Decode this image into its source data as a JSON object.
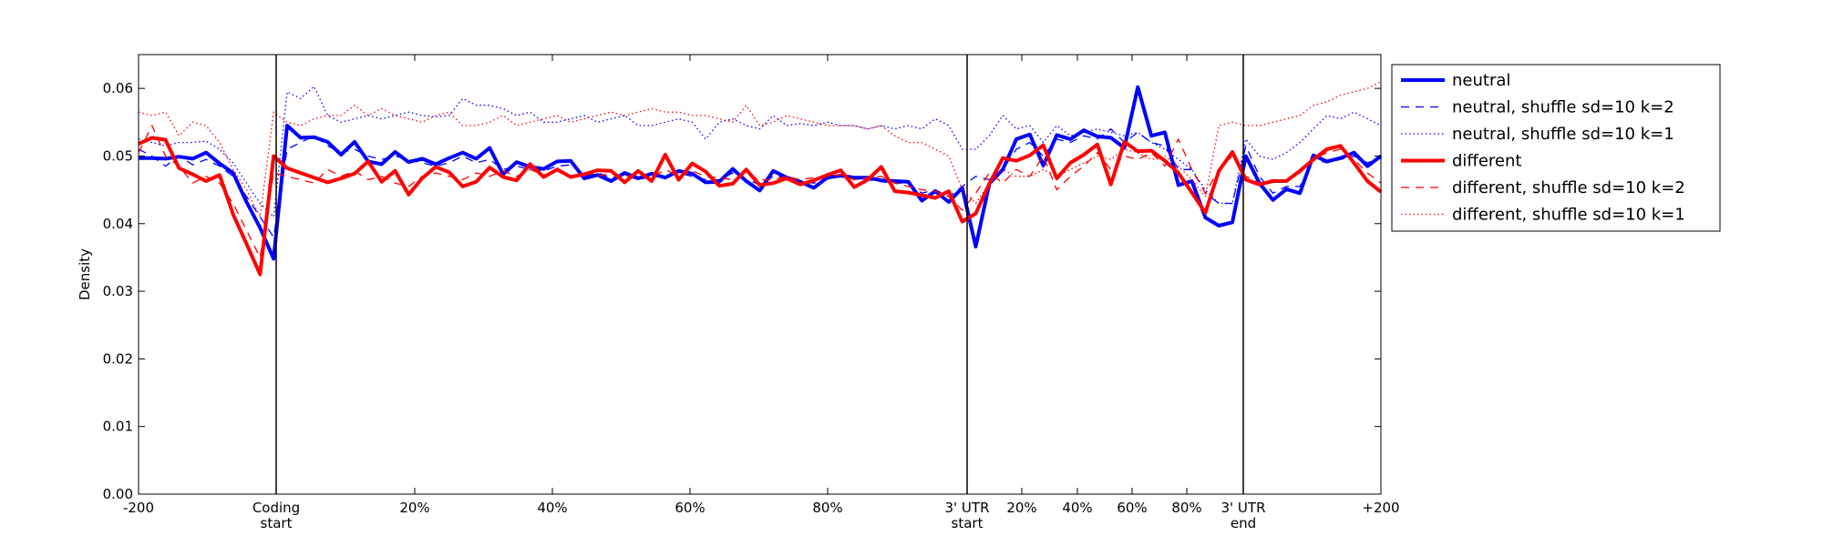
{
  "chart_data": {
    "type": "line",
    "title": "",
    "xlabel": "",
    "ylabel": "Density",
    "ylim": [
      0,
      0.065
    ],
    "y_ticks": [
      "0.00",
      "0.01",
      "0.02",
      "0.03",
      "0.04",
      "0.05",
      "0.06"
    ],
    "x_tick_labels": [
      "-200",
      "Coding\nstart",
      "20%",
      "40%",
      "60%",
      "80%",
      "3' UTR\nstart",
      "20%",
      "40%",
      "60%",
      "80%",
      "3' UTR\nend",
      "+200"
    ],
    "grid": false,
    "legend_position": "outside-right-top",
    "series": [
      {
        "name": "neutral",
        "color": "#0000ff",
        "style": "solid",
        "width": "thick",
        "values": [
          0.0497,
          0.0497,
          0.0496,
          0.0499,
          0.0496,
          0.0505,
          0.0489,
          0.0475,
          0.0432,
          0.0394,
          0.0348,
          0.0545,
          0.0527,
          0.0528,
          0.0521,
          0.0502,
          0.0521,
          0.0492,
          0.0488,
          0.0506,
          0.0491,
          0.0496,
          0.0488,
          0.0497,
          0.0505,
          0.0496,
          0.0512,
          0.0473,
          0.0491,
          0.0484,
          0.0481,
          0.0492,
          0.0493,
          0.0467,
          0.0472,
          0.0463,
          0.0475,
          0.0467,
          0.0474,
          0.0468,
          0.0478,
          0.0474,
          0.0461,
          0.0462,
          0.0481,
          0.0463,
          0.0449,
          0.0478,
          0.0468,
          0.0462,
          0.0453,
          0.0468,
          0.0471,
          0.0468,
          0.0468,
          0.0464,
          0.0463,
          0.0462,
          0.0434,
          0.0448,
          0.0432,
          0.0453,
          0.0366,
          0.0459,
          0.048,
          0.0525,
          0.0532,
          0.0486,
          0.0531,
          0.0525,
          0.0538,
          0.0529,
          0.0527,
          0.0512,
          0.0602,
          0.053,
          0.0535,
          0.0457,
          0.0463,
          0.0409,
          0.0397,
          0.0402,
          0.05,
          0.046,
          0.0435,
          0.0451,
          0.0445,
          0.0501,
          0.0492,
          0.0497,
          0.0505,
          0.0485,
          0.05
        ]
      },
      {
        "name": "neutral, shuffle sd=10 k=2",
        "color": "#0000ff",
        "style": "dashed",
        "width": "thin",
        "values": [
          0.051,
          0.05,
          0.0485,
          0.05,
          0.0487,
          0.0495,
          0.0485,
          0.047,
          0.044,
          0.041,
          0.038,
          0.051,
          0.052,
          0.053,
          0.0515,
          0.0505,
          0.051,
          0.05,
          0.0495,
          0.05,
          0.0495,
          0.049,
          0.0485,
          0.049,
          0.05,
          0.049,
          0.0495,
          0.048,
          0.0485,
          0.048,
          0.0478,
          0.0485,
          0.0487,
          0.047,
          0.0475,
          0.0468,
          0.0472,
          0.0465,
          0.047,
          0.0468,
          0.0475,
          0.047,
          0.0465,
          0.0465,
          0.0475,
          0.0465,
          0.0458,
          0.047,
          0.0468,
          0.0462,
          0.046,
          0.0466,
          0.047,
          0.0466,
          0.0465,
          0.0462,
          0.046,
          0.046,
          0.0445,
          0.045,
          0.044,
          0.0455,
          0.047,
          0.0465,
          0.048,
          0.051,
          0.052,
          0.05,
          0.0525,
          0.052,
          0.053,
          0.0525,
          0.054,
          0.052,
          0.0535,
          0.052,
          0.0515,
          0.048,
          0.048,
          0.0445,
          0.043,
          0.043,
          0.0515,
          0.047,
          0.0445,
          0.0455,
          0.0455,
          0.0495,
          0.049,
          0.0495,
          0.05,
          0.049,
          0.0497
        ]
      },
      {
        "name": "neutral, shuffle sd=10 k=1",
        "color": "#0000ff",
        "style": "dotted",
        "width": "thin",
        "values": [
          0.0525,
          0.052,
          0.0515,
          0.052,
          0.052,
          0.0522,
          0.051,
          0.049,
          0.046,
          0.043,
          0.041,
          0.0595,
          0.0585,
          0.0603,
          0.056,
          0.055,
          0.0555,
          0.056,
          0.0555,
          0.056,
          0.0565,
          0.056,
          0.0558,
          0.056,
          0.0585,
          0.0575,
          0.0575,
          0.057,
          0.056,
          0.0565,
          0.055,
          0.055,
          0.0555,
          0.056,
          0.055,
          0.0555,
          0.056,
          0.0545,
          0.0545,
          0.055,
          0.0555,
          0.055,
          0.0525,
          0.055,
          0.0555,
          0.0545,
          0.054,
          0.056,
          0.0545,
          0.0548,
          0.0545,
          0.055,
          0.0545,
          0.0545,
          0.054,
          0.0545,
          0.054,
          0.0545,
          0.054,
          0.0555,
          0.0545,
          0.051,
          0.051,
          0.053,
          0.056,
          0.054,
          0.0545,
          0.052,
          0.0545,
          0.053,
          0.0535,
          0.054,
          0.0535,
          0.053,
          0.0535,
          0.052,
          0.051,
          0.0495,
          0.048,
          0.045,
          0.043,
          0.043,
          0.0525,
          0.05,
          0.0495,
          0.0505,
          0.052,
          0.054,
          0.056,
          0.0555,
          0.0565,
          0.0555,
          0.0545
        ]
      },
      {
        "name": "different",
        "color": "#ff0000",
        "style": "solid",
        "width": "thick",
        "values": [
          0.0518,
          0.0527,
          0.0524,
          0.0482,
          0.0473,
          0.0463,
          0.0472,
          0.0414,
          0.037,
          0.0325,
          0.05,
          0.0482,
          0.0475,
          0.0468,
          0.0461,
          0.0467,
          0.0474,
          0.0492,
          0.0462,
          0.0478,
          0.0443,
          0.0467,
          0.0484,
          0.0476,
          0.0455,
          0.0462,
          0.0483,
          0.0469,
          0.0464,
          0.0488,
          0.0469,
          0.048,
          0.0469,
          0.0473,
          0.0479,
          0.0478,
          0.0461,
          0.0478,
          0.0463,
          0.0502,
          0.0465,
          0.0489,
          0.0477,
          0.0456,
          0.0459,
          0.048,
          0.0457,
          0.046,
          0.0467,
          0.0458,
          0.0464,
          0.0472,
          0.0479,
          0.0454,
          0.0465,
          0.0484,
          0.0448,
          0.0446,
          0.0442,
          0.0438,
          0.0448,
          0.0403,
          0.0415,
          0.0459,
          0.0497,
          0.0493,
          0.0501,
          0.0516,
          0.0467,
          0.049,
          0.0502,
          0.0517,
          0.0458,
          0.0521,
          0.0507,
          0.0508,
          0.0493,
          0.0475,
          0.0446,
          0.0416,
          0.0478,
          0.0506,
          0.0465,
          0.0458,
          0.0463,
          0.0463,
          0.0478,
          0.0495,
          0.051,
          0.0515,
          0.049,
          0.0463,
          0.0447
        ]
      },
      {
        "name": "different, shuffle sd=10 k=2",
        "color": "#ff0000",
        "style": "dashed",
        "width": "thin",
        "values": [
          0.0505,
          0.0545,
          0.05,
          0.0485,
          0.046,
          0.047,
          0.046,
          0.043,
          0.039,
          0.035,
          0.0475,
          0.047,
          0.0465,
          0.046,
          0.048,
          0.047,
          0.0478,
          0.0465,
          0.047,
          0.046,
          0.0455,
          0.047,
          0.0475,
          0.047,
          0.0465,
          0.0475,
          0.047,
          0.0478,
          0.047,
          0.048,
          0.0472,
          0.0478,
          0.047,
          0.0475,
          0.047,
          0.0475,
          0.047,
          0.0472,
          0.0468,
          0.048,
          0.047,
          0.0478,
          0.047,
          0.0468,
          0.0465,
          0.0475,
          0.0465,
          0.0465,
          0.047,
          0.0465,
          0.0468,
          0.047,
          0.0472,
          0.0465,
          0.0468,
          0.047,
          0.046,
          0.0455,
          0.045,
          0.0448,
          0.044,
          0.042,
          0.0445,
          0.0475,
          0.046,
          0.048,
          0.047,
          0.05,
          0.045,
          0.047,
          0.0485,
          0.0505,
          0.048,
          0.05,
          0.0495,
          0.0505,
          0.0485,
          0.0525,
          0.048,
          0.0445,
          0.048,
          0.05,
          0.047,
          0.046,
          0.0465,
          0.0465,
          0.0475,
          0.0495,
          0.0505,
          0.051,
          0.0495,
          0.0475,
          0.046
        ]
      },
      {
        "name": "different, shuffle sd=10 k=1",
        "color": "#ff0000",
        "style": "dotted",
        "width": "thin",
        "values": [
          0.0565,
          0.056,
          0.0565,
          0.053,
          0.055,
          0.0545,
          0.052,
          0.048,
          0.045,
          0.041,
          0.0565,
          0.055,
          0.0545,
          0.0555,
          0.056,
          0.056,
          0.0575,
          0.056,
          0.057,
          0.056,
          0.0555,
          0.055,
          0.056,
          0.0565,
          0.0545,
          0.0545,
          0.055,
          0.056,
          0.0545,
          0.055,
          0.0555,
          0.056,
          0.055,
          0.0555,
          0.056,
          0.0565,
          0.056,
          0.0565,
          0.057,
          0.0565,
          0.0565,
          0.056,
          0.056,
          0.0555,
          0.055,
          0.0575,
          0.0545,
          0.055,
          0.056,
          0.0555,
          0.055,
          0.0545,
          0.0545,
          0.0545,
          0.054,
          0.0545,
          0.053,
          0.052,
          0.052,
          0.051,
          0.05,
          0.045,
          0.043,
          0.046,
          0.048,
          0.047,
          0.047,
          0.048,
          0.047,
          0.048,
          0.049,
          0.05,
          0.0495,
          0.051,
          0.0505,
          0.0495,
          0.05,
          0.0485,
          0.0465,
          0.044,
          0.0545,
          0.055,
          0.0545,
          0.0545,
          0.055,
          0.0555,
          0.056,
          0.0575,
          0.058,
          0.059,
          0.0595,
          0.06,
          0.061
        ]
      }
    ]
  }
}
